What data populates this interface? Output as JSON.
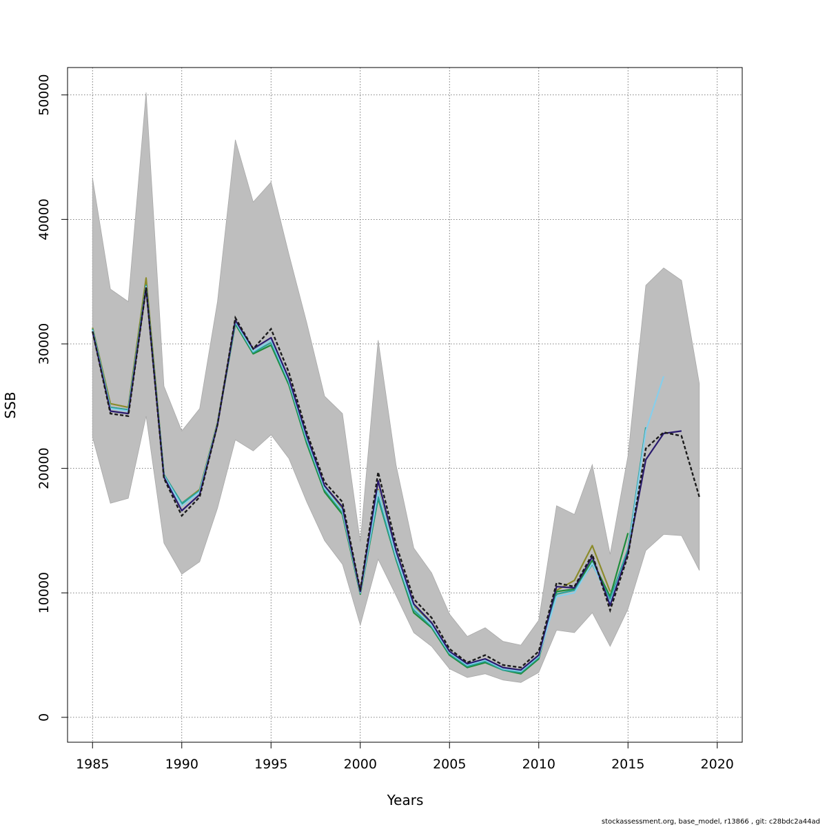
{
  "chart_data": {
    "type": "line",
    "title": "",
    "xlabel": "Years",
    "ylabel": "SSB",
    "xlim": [
      1983.6,
      2021.4
    ],
    "ylim": [
      -2000,
      52200
    ],
    "x_ticks": [
      1985,
      1990,
      1995,
      2000,
      2005,
      2010,
      2015,
      2020
    ],
    "y_ticks": [
      0,
      10000,
      20000,
      30000,
      40000,
      50000
    ],
    "grid": true,
    "legend": "none",
    "confidence_band": {
      "color": "#bebebe",
      "years": [
        1985,
        1986,
        1987,
        1988,
        1989,
        1990,
        1991,
        1992,
        1993,
        1994,
        1995,
        1996,
        1997,
        1998,
        1999,
        2000,
        2001,
        2002,
        2003,
        2004,
        2005,
        2006,
        2007,
        2008,
        2009,
        2010,
        2011,
        2012,
        2013,
        2014,
        2015,
        2016,
        2017,
        2018,
        2019
      ],
      "upper": [
        43300,
        34400,
        33400,
        50200,
        26600,
        23000,
        24800,
        33400,
        46400,
        41400,
        43000,
        37200,
        31700,
        25800,
        24400,
        14100,
        30300,
        20300,
        13600,
        11600,
        8300,
        6500,
        7200,
        6100,
        5800,
        7800,
        17000,
        16300,
        20300,
        13100,
        21000,
        34700,
        36100,
        35100,
        26800
      ],
      "lower": [
        22500,
        17200,
        17600,
        24200,
        14000,
        11500,
        12500,
        16800,
        22300,
        21400,
        22700,
        20800,
        17300,
        14200,
        12300,
        7400,
        12700,
        9800,
        6800,
        5700,
        3900,
        3200,
        3500,
        3000,
        2800,
        3600,
        7000,
        6800,
        8400,
        5700,
        8700,
        13400,
        14700,
        14600,
        11800
      ]
    },
    "series": [
      {
        "color": "#1a1a1a",
        "dash": true,
        "x": [
          1985,
          1986,
          1987,
          1988,
          1989,
          1990,
          1991,
          1992,
          1993,
          1994,
          1995,
          1996,
          1997,
          1998,
          1999,
          2000,
          2001,
          2002,
          2003,
          2004,
          2005,
          2006,
          2007,
          2008,
          2009,
          2010,
          2011,
          2012,
          2013,
          2014,
          2015,
          2016,
          2017,
          2018,
          2019
        ],
        "values": [
          31000,
          24400,
          24200,
          34500,
          19200,
          16200,
          17700,
          23500,
          32100,
          29600,
          31200,
          27700,
          22900,
          18900,
          17300,
          10200,
          19700,
          13900,
          9500,
          8000,
          5500,
          4400,
          5000,
          4200,
          4000,
          5300,
          10800,
          10500,
          13100,
          8600,
          13000,
          21600,
          22900,
          22600,
          17700
        ]
      },
      {
        "color": "#2a1a6e",
        "dash": false,
        "x": [
          1985,
          1986,
          1987,
          1988,
          1989,
          1990,
          1991,
          1992,
          1993,
          1994,
          1995,
          1996,
          1997,
          1998,
          1999,
          2000,
          2001,
          2002,
          2003,
          2004,
          2005,
          2006,
          2007,
          2008,
          2009,
          2010,
          2011,
          2012,
          2013,
          2014,
          2015,
          2016,
          2017,
          2018
        ],
        "values": [
          31000,
          24600,
          24400,
          34500,
          19300,
          16600,
          17900,
          23500,
          31900,
          29600,
          30500,
          27200,
          22600,
          18600,
          16900,
          10100,
          19000,
          13400,
          9100,
          7600,
          5300,
          4300,
          4700,
          4000,
          3800,
          5000,
          10500,
          10400,
          12900,
          9000,
          13200,
          20700,
          22800,
          23000
        ]
      },
      {
        "color": "#87ceeb",
        "dash": false,
        "x": [
          1985,
          1986,
          1987,
          1988,
          1989,
          1990,
          1991,
          1992,
          1993,
          1994,
          1995,
          1996,
          1997,
          1998,
          1999,
          2000,
          2001,
          2002,
          2003,
          2004,
          2005,
          2006,
          2007,
          2008,
          2009,
          2010,
          2011,
          2012,
          2013,
          2014,
          2015,
          2016,
          2017
        ],
        "values": [
          31100,
          24800,
          24600,
          34600,
          19400,
          17000,
          18100,
          23600,
          31800,
          29400,
          30300,
          27000,
          22400,
          18400,
          16600,
          10000,
          18200,
          13000,
          8800,
          7400,
          5200,
          4200,
          4600,
          3900,
          3700,
          4900,
          9700,
          10000,
          12400,
          9200,
          13200,
          23000,
          27400
        ]
      },
      {
        "color": "#2aa198",
        "dash": false,
        "x": [
          1985,
          1986,
          1987,
          1988,
          1989,
          1990,
          1991,
          1992,
          1993,
          1994,
          1995,
          1996,
          1997,
          1998,
          1999,
          2000,
          2001,
          2002,
          2003,
          2004,
          2005,
          2006,
          2007,
          2008,
          2009,
          2010,
          2011,
          2012,
          2013,
          2014,
          2015,
          2016
        ],
        "values": [
          31200,
          24900,
          24700,
          34700,
          19500,
          17200,
          18200,
          23600,
          31700,
          29300,
          30100,
          26900,
          22200,
          18300,
          16500,
          10000,
          17700,
          12800,
          8600,
          7300,
          5100,
          4100,
          4500,
          3800,
          3600,
          4800,
          9900,
          10200,
          12300,
          9500,
          13500,
          23300
        ]
      },
      {
        "color": "#1e8c3a",
        "dash": false,
        "x": [
          1985,
          1986,
          1987,
          1988,
          1989,
          1990,
          1991,
          1992,
          1993,
          1994,
          1995,
          1996,
          1997,
          1998,
          1999,
          2000,
          2001,
          2002,
          2003,
          2004,
          2005,
          2006,
          2007,
          2008,
          2009,
          2010,
          2011,
          2012,
          2013,
          2014,
          2015
        ],
        "values": [
          31200,
          24900,
          24700,
          34700,
          19500,
          17100,
          18200,
          23600,
          31600,
          29200,
          29900,
          26700,
          22000,
          18100,
          16300,
          9900,
          17600,
          12700,
          8400,
          7200,
          5000,
          4000,
          4400,
          3800,
          3500,
          4700,
          10100,
          10300,
          12600,
          9700,
          14800
        ]
      },
      {
        "color": "#8b8b2a",
        "dash": false,
        "x": [
          1985,
          1986,
          1987,
          1988,
          1989,
          1990,
          1991,
          1992,
          1993,
          1994,
          1995,
          1996,
          1997,
          1998,
          1999,
          2000,
          2001,
          2002,
          2003,
          2004,
          2005,
          2006,
          2007,
          2008,
          2009,
          2010,
          2011,
          2012,
          2013,
          2014
        ],
        "values": [
          31300,
          25200,
          24900,
          35300,
          19500,
          17200,
          18300,
          23700,
          31900,
          29400,
          30300,
          27000,
          22300,
          18500,
          16700,
          10100,
          18300,
          13100,
          8900,
          7500,
          5200,
          4200,
          4600,
          3900,
          3700,
          4900,
          10200,
          11000,
          13800,
          10100
        ]
      }
    ]
  },
  "footer_text": "stockassessment.org, base_model, r13866 , git: c28bdc2a44ad"
}
